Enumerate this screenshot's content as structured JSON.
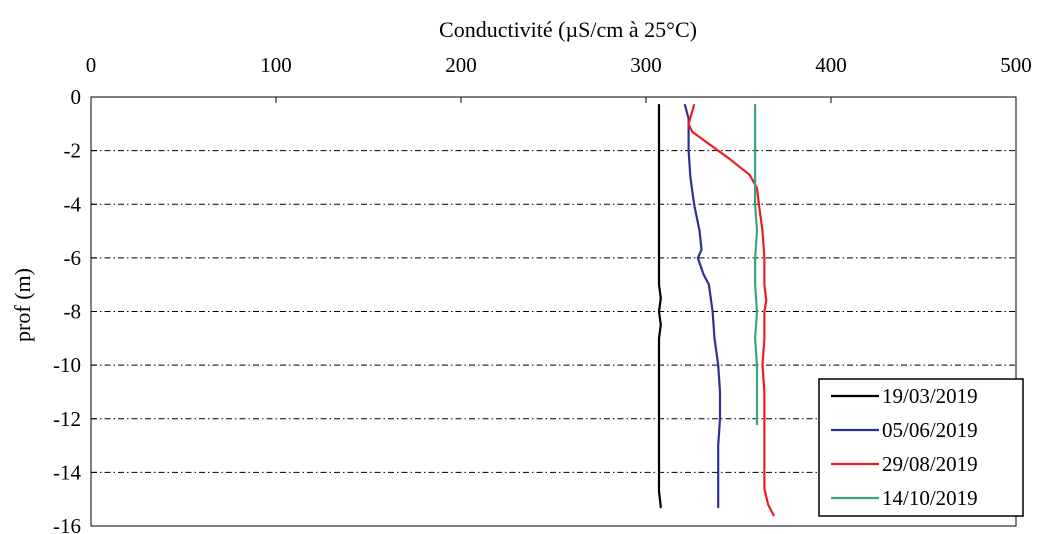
{
  "chart_data": {
    "type": "line",
    "title": "",
    "xlabel": "Conductivité (µS/cm à 25°C)",
    "ylabel": "prof (m)",
    "xlim": [
      0,
      500
    ],
    "ylim": [
      -16,
      0
    ],
    "x_ticks": [
      "0",
      "100",
      "200",
      "300",
      "400",
      "500"
    ],
    "y_ticks": [
      "0",
      "-2",
      "-4",
      "-6",
      "-8",
      "-10",
      "-12",
      "-14",
      "-16"
    ],
    "x_axis_position": "top",
    "grid": "horizontal dash-dot",
    "legend_position": "bottom-right",
    "series": [
      {
        "name": "19/03/2019",
        "color": "#000000",
        "points": [
          [
            307,
            -0.3
          ],
          [
            307,
            -2
          ],
          [
            307,
            -4
          ],
          [
            307,
            -6
          ],
          [
            307,
            -7
          ],
          [
            308,
            -7.5
          ],
          [
            307,
            -8
          ],
          [
            308,
            -8.5
          ],
          [
            307,
            -9
          ],
          [
            307,
            -10
          ],
          [
            307,
            -12
          ],
          [
            307,
            -14
          ],
          [
            307,
            -14.7
          ],
          [
            308,
            -15.3
          ]
        ]
      },
      {
        "name": "05/06/2019",
        "color": "#2e3192",
        "points": [
          [
            321,
            -0.3
          ],
          [
            323,
            -0.8
          ],
          [
            323,
            -2
          ],
          [
            324,
            -3
          ],
          [
            326,
            -4
          ],
          [
            329,
            -5
          ],
          [
            330,
            -5.7
          ],
          [
            328,
            -6
          ],
          [
            331,
            -6.6
          ],
          [
            334,
            -7
          ],
          [
            336,
            -8
          ],
          [
            337,
            -9
          ],
          [
            339,
            -10
          ],
          [
            340,
            -11
          ],
          [
            340,
            -12
          ],
          [
            339,
            -13
          ],
          [
            339,
            -14
          ],
          [
            339,
            -15.3
          ]
        ]
      },
      {
        "name": "29/08/2019",
        "color": "#ed1c24",
        "points": [
          [
            326,
            -0.3
          ],
          [
            323,
            -1
          ],
          [
            325,
            -1.3
          ],
          [
            333,
            -1.7
          ],
          [
            345,
            -2.3
          ],
          [
            356,
            -2.9
          ],
          [
            360,
            -3.4
          ],
          [
            361,
            -4
          ],
          [
            363,
            -5
          ],
          [
            364,
            -6
          ],
          [
            364,
            -7
          ],
          [
            365,
            -7.6
          ],
          [
            364,
            -8
          ],
          [
            364,
            -9
          ],
          [
            363,
            -10
          ],
          [
            364,
            -11
          ],
          [
            364,
            -12
          ],
          [
            364,
            -13
          ],
          [
            364,
            -14
          ],
          [
            364,
            -14.6
          ],
          [
            366,
            -15.2
          ],
          [
            369,
            -15.6
          ]
        ]
      },
      {
        "name": "14/10/2019",
        "color": "#3aa47a",
        "points": [
          [
            359,
            -0.3
          ],
          [
            359,
            -2
          ],
          [
            359,
            -3
          ],
          [
            359,
            -4
          ],
          [
            360,
            -5
          ],
          [
            359,
            -6
          ],
          [
            359,
            -7
          ],
          [
            360,
            -8
          ],
          [
            359,
            -9
          ],
          [
            360,
            -10
          ],
          [
            360,
            -11
          ],
          [
            360,
            -12.2
          ]
        ]
      }
    ]
  }
}
